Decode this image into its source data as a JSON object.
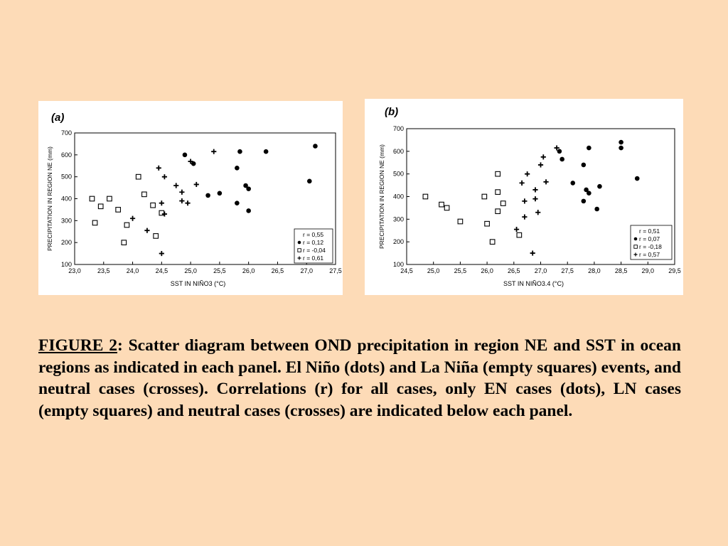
{
  "caption": {
    "label": "FIGURE 2",
    "text": ": Scatter diagram between OND precipitation in region NE and SST in ocean regions as indicated in each panel. El Niño (dots) and La Niña (empty squares) events, and neutral cases (crosses). Correlations (r) for all cases, only EN cases (dots), LN cases (empty squares) and neutral cases (crosses) are indicated below each panel."
  },
  "chart_data": [
    {
      "type": "scatter",
      "panel_label": "(a)",
      "xlabel": "SST IN NIÑO3 (°C)",
      "ylabel": "PRECIPITATION IN REGION NE (mm)",
      "xlim": [
        23.0,
        27.5
      ],
      "ylim": [
        100,
        700
      ],
      "x_ticks": [
        23.0,
        23.5,
        24.0,
        24.5,
        25.0,
        25.5,
        26.0,
        26.5,
        27.0,
        27.5
      ],
      "x_tick_labels": [
        "23,0",
        "23,5",
        "24,0",
        "24,5",
        "25,0",
        "25,5",
        "26,0",
        "26,5",
        "27,0",
        "27,5"
      ],
      "y_ticks": [
        100,
        200,
        300,
        400,
        500,
        600,
        700
      ],
      "y_tick_labels": [
        "100",
        "200",
        "300",
        "400",
        "500",
        "600",
        "700"
      ],
      "legend_position": "bottom-right",
      "legend": [
        {
          "marker": "none",
          "text": "r =  0,55"
        },
        {
          "marker": "dot",
          "text": "r =  0,12"
        },
        {
          "marker": "square",
          "text": "r = -0,04"
        },
        {
          "marker": "cross",
          "text": "r =  0,61"
        }
      ],
      "series": [
        {
          "marker": "dot",
          "points": [
            [
              24.9,
              600
            ],
            [
              25.05,
              560
            ],
            [
              25.3,
              415
            ],
            [
              25.5,
              425
            ],
            [
              25.8,
              540
            ],
            [
              25.85,
              615
            ],
            [
              25.8,
              380
            ],
            [
              25.95,
              460
            ],
            [
              26.0,
              445
            ],
            [
              26.0,
              345
            ],
            [
              26.3,
              615
            ],
            [
              27.05,
              480
            ],
            [
              27.15,
              640
            ]
          ]
        },
        {
          "marker": "square",
          "points": [
            [
              23.3,
              400
            ],
            [
              23.35,
              290
            ],
            [
              23.45,
              365
            ],
            [
              23.6,
              400
            ],
            [
              23.75,
              350
            ],
            [
              23.85,
              200
            ],
            [
              23.9,
              280
            ],
            [
              24.1,
              500
            ],
            [
              24.2,
              420
            ],
            [
              24.35,
              370
            ],
            [
              24.4,
              230
            ],
            [
              24.5,
              335
            ]
          ]
        },
        {
          "marker": "cross",
          "points": [
            [
              24.0,
              310
            ],
            [
              24.25,
              255
            ],
            [
              24.45,
              540
            ],
            [
              24.5,
              380
            ],
            [
              24.5,
              150
            ],
            [
              24.55,
              500
            ],
            [
              24.55,
              330
            ],
            [
              24.75,
              460
            ],
            [
              24.85,
              390
            ],
            [
              24.85,
              430
            ],
            [
              24.95,
              380
            ],
            [
              25.0,
              570
            ],
            [
              25.1,
              465
            ],
            [
              25.4,
              615
            ]
          ]
        }
      ]
    },
    {
      "type": "scatter",
      "panel_label": "(b)",
      "xlabel": "SST IN NIÑO3.4  (°C)",
      "ylabel": "PRECIPITATION IN REGION NE (mm)",
      "xlim": [
        24.5,
        29.5
      ],
      "ylim": [
        100,
        700
      ],
      "x_ticks": [
        24.5,
        25.0,
        25.5,
        26.0,
        26.5,
        27.0,
        27.5,
        28.0,
        28.5,
        29.0,
        29.5
      ],
      "x_tick_labels": [
        "24,5",
        "25,0",
        "25,5",
        "26,0",
        "26,5",
        "27,0",
        "27,5",
        "28,0",
        "28,5",
        "29,0",
        "29,5"
      ],
      "y_ticks": [
        100,
        200,
        300,
        400,
        500,
        600,
        700
      ],
      "y_tick_labels": [
        "100",
        "200",
        "300",
        "400",
        "500",
        "600",
        "700"
      ],
      "legend_position": "bottom-right",
      "legend": [
        {
          "marker": "none",
          "text": "r =  0,51"
        },
        {
          "marker": "dot",
          "text": "r =  0,07"
        },
        {
          "marker": "square",
          "text": "r = -0,18"
        },
        {
          "marker": "cross",
          "text": "r =  0,57"
        }
      ],
      "series": [
        {
          "marker": "dot",
          "points": [
            [
              27.35,
              600
            ],
            [
              27.4,
              565
            ],
            [
              27.6,
              460
            ],
            [
              27.8,
              380
            ],
            [
              27.8,
              540
            ],
            [
              27.85,
              430
            ],
            [
              27.9,
              615
            ],
            [
              27.9,
              415
            ],
            [
              28.05,
              345
            ],
            [
              28.1,
              445
            ],
            [
              28.5,
              640
            ],
            [
              28.5,
              615
            ],
            [
              28.8,
              480
            ]
          ]
        },
        {
          "marker": "square",
          "points": [
            [
              24.85,
              400
            ],
            [
              25.15,
              365
            ],
            [
              25.25,
              350
            ],
            [
              25.5,
              290
            ],
            [
              25.95,
              400
            ],
            [
              26.0,
              280
            ],
            [
              26.1,
              200
            ],
            [
              26.2,
              420
            ],
            [
              26.2,
              500
            ],
            [
              26.2,
              335
            ],
            [
              26.3,
              370
            ],
            [
              26.6,
              230
            ]
          ]
        },
        {
          "marker": "cross",
          "points": [
            [
              26.55,
              255
            ],
            [
              26.65,
              460
            ],
            [
              26.7,
              380
            ],
            [
              26.7,
              310
            ],
            [
              26.75,
              500
            ],
            [
              26.85,
              150
            ],
            [
              26.9,
              430
            ],
            [
              26.9,
              390
            ],
            [
              26.95,
              330
            ],
            [
              27.0,
              540
            ],
            [
              27.05,
              575
            ],
            [
              27.1,
              465
            ],
            [
              27.3,
              615
            ]
          ]
        }
      ]
    }
  ]
}
